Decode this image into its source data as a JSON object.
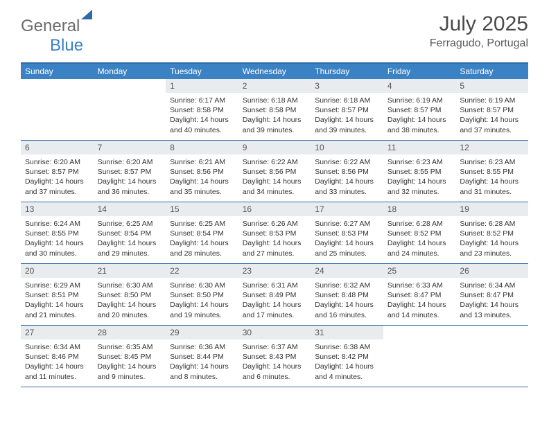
{
  "brand": {
    "name_gray": "General",
    "name_blue": "Blue"
  },
  "header": {
    "title": "July 2025",
    "location": "Ferragudo, Portugal"
  },
  "colors": {
    "header_bar": "#3b82c4",
    "border": "#2f6aa8",
    "daynum_bg": "#e9ecef",
    "text": "#333333",
    "title_text": "#4a4a4a",
    "logo_gray": "#6b6b6b"
  },
  "weekdays": [
    "Sunday",
    "Monday",
    "Tuesday",
    "Wednesday",
    "Thursday",
    "Friday",
    "Saturday"
  ],
  "weeks": [
    [
      {
        "n": "",
        "sr": "",
        "ss": "",
        "dl": ""
      },
      {
        "n": "",
        "sr": "",
        "ss": "",
        "dl": ""
      },
      {
        "n": "1",
        "sr": "Sunrise: 6:17 AM",
        "ss": "Sunset: 8:58 PM",
        "dl": "Daylight: 14 hours and 40 minutes."
      },
      {
        "n": "2",
        "sr": "Sunrise: 6:18 AM",
        "ss": "Sunset: 8:58 PM",
        "dl": "Daylight: 14 hours and 39 minutes."
      },
      {
        "n": "3",
        "sr": "Sunrise: 6:18 AM",
        "ss": "Sunset: 8:57 PM",
        "dl": "Daylight: 14 hours and 39 minutes."
      },
      {
        "n": "4",
        "sr": "Sunrise: 6:19 AM",
        "ss": "Sunset: 8:57 PM",
        "dl": "Daylight: 14 hours and 38 minutes."
      },
      {
        "n": "5",
        "sr": "Sunrise: 6:19 AM",
        "ss": "Sunset: 8:57 PM",
        "dl": "Daylight: 14 hours and 37 minutes."
      }
    ],
    [
      {
        "n": "6",
        "sr": "Sunrise: 6:20 AM",
        "ss": "Sunset: 8:57 PM",
        "dl": "Daylight: 14 hours and 37 minutes."
      },
      {
        "n": "7",
        "sr": "Sunrise: 6:20 AM",
        "ss": "Sunset: 8:57 PM",
        "dl": "Daylight: 14 hours and 36 minutes."
      },
      {
        "n": "8",
        "sr": "Sunrise: 6:21 AM",
        "ss": "Sunset: 8:56 PM",
        "dl": "Daylight: 14 hours and 35 minutes."
      },
      {
        "n": "9",
        "sr": "Sunrise: 6:22 AM",
        "ss": "Sunset: 8:56 PM",
        "dl": "Daylight: 14 hours and 34 minutes."
      },
      {
        "n": "10",
        "sr": "Sunrise: 6:22 AM",
        "ss": "Sunset: 8:56 PM",
        "dl": "Daylight: 14 hours and 33 minutes."
      },
      {
        "n": "11",
        "sr": "Sunrise: 6:23 AM",
        "ss": "Sunset: 8:55 PM",
        "dl": "Daylight: 14 hours and 32 minutes."
      },
      {
        "n": "12",
        "sr": "Sunrise: 6:23 AM",
        "ss": "Sunset: 8:55 PM",
        "dl": "Daylight: 14 hours and 31 minutes."
      }
    ],
    [
      {
        "n": "13",
        "sr": "Sunrise: 6:24 AM",
        "ss": "Sunset: 8:55 PM",
        "dl": "Daylight: 14 hours and 30 minutes."
      },
      {
        "n": "14",
        "sr": "Sunrise: 6:25 AM",
        "ss": "Sunset: 8:54 PM",
        "dl": "Daylight: 14 hours and 29 minutes."
      },
      {
        "n": "15",
        "sr": "Sunrise: 6:25 AM",
        "ss": "Sunset: 8:54 PM",
        "dl": "Daylight: 14 hours and 28 minutes."
      },
      {
        "n": "16",
        "sr": "Sunrise: 6:26 AM",
        "ss": "Sunset: 8:53 PM",
        "dl": "Daylight: 14 hours and 27 minutes."
      },
      {
        "n": "17",
        "sr": "Sunrise: 6:27 AM",
        "ss": "Sunset: 8:53 PM",
        "dl": "Daylight: 14 hours and 25 minutes."
      },
      {
        "n": "18",
        "sr": "Sunrise: 6:28 AM",
        "ss": "Sunset: 8:52 PM",
        "dl": "Daylight: 14 hours and 24 minutes."
      },
      {
        "n": "19",
        "sr": "Sunrise: 6:28 AM",
        "ss": "Sunset: 8:52 PM",
        "dl": "Daylight: 14 hours and 23 minutes."
      }
    ],
    [
      {
        "n": "20",
        "sr": "Sunrise: 6:29 AM",
        "ss": "Sunset: 8:51 PM",
        "dl": "Daylight: 14 hours and 21 minutes."
      },
      {
        "n": "21",
        "sr": "Sunrise: 6:30 AM",
        "ss": "Sunset: 8:50 PM",
        "dl": "Daylight: 14 hours and 20 minutes."
      },
      {
        "n": "22",
        "sr": "Sunrise: 6:30 AM",
        "ss": "Sunset: 8:50 PM",
        "dl": "Daylight: 14 hours and 19 minutes."
      },
      {
        "n": "23",
        "sr": "Sunrise: 6:31 AM",
        "ss": "Sunset: 8:49 PM",
        "dl": "Daylight: 14 hours and 17 minutes."
      },
      {
        "n": "24",
        "sr": "Sunrise: 6:32 AM",
        "ss": "Sunset: 8:48 PM",
        "dl": "Daylight: 14 hours and 16 minutes."
      },
      {
        "n": "25",
        "sr": "Sunrise: 6:33 AM",
        "ss": "Sunset: 8:47 PM",
        "dl": "Daylight: 14 hours and 14 minutes."
      },
      {
        "n": "26",
        "sr": "Sunrise: 6:34 AM",
        "ss": "Sunset: 8:47 PM",
        "dl": "Daylight: 14 hours and 13 minutes."
      }
    ],
    [
      {
        "n": "27",
        "sr": "Sunrise: 6:34 AM",
        "ss": "Sunset: 8:46 PM",
        "dl": "Daylight: 14 hours and 11 minutes."
      },
      {
        "n": "28",
        "sr": "Sunrise: 6:35 AM",
        "ss": "Sunset: 8:45 PM",
        "dl": "Daylight: 14 hours and 9 minutes."
      },
      {
        "n": "29",
        "sr": "Sunrise: 6:36 AM",
        "ss": "Sunset: 8:44 PM",
        "dl": "Daylight: 14 hours and 8 minutes."
      },
      {
        "n": "30",
        "sr": "Sunrise: 6:37 AM",
        "ss": "Sunset: 8:43 PM",
        "dl": "Daylight: 14 hours and 6 minutes."
      },
      {
        "n": "31",
        "sr": "Sunrise: 6:38 AM",
        "ss": "Sunset: 8:42 PM",
        "dl": "Daylight: 14 hours and 4 minutes."
      },
      {
        "n": "",
        "sr": "",
        "ss": "",
        "dl": ""
      },
      {
        "n": "",
        "sr": "",
        "ss": "",
        "dl": ""
      }
    ]
  ]
}
